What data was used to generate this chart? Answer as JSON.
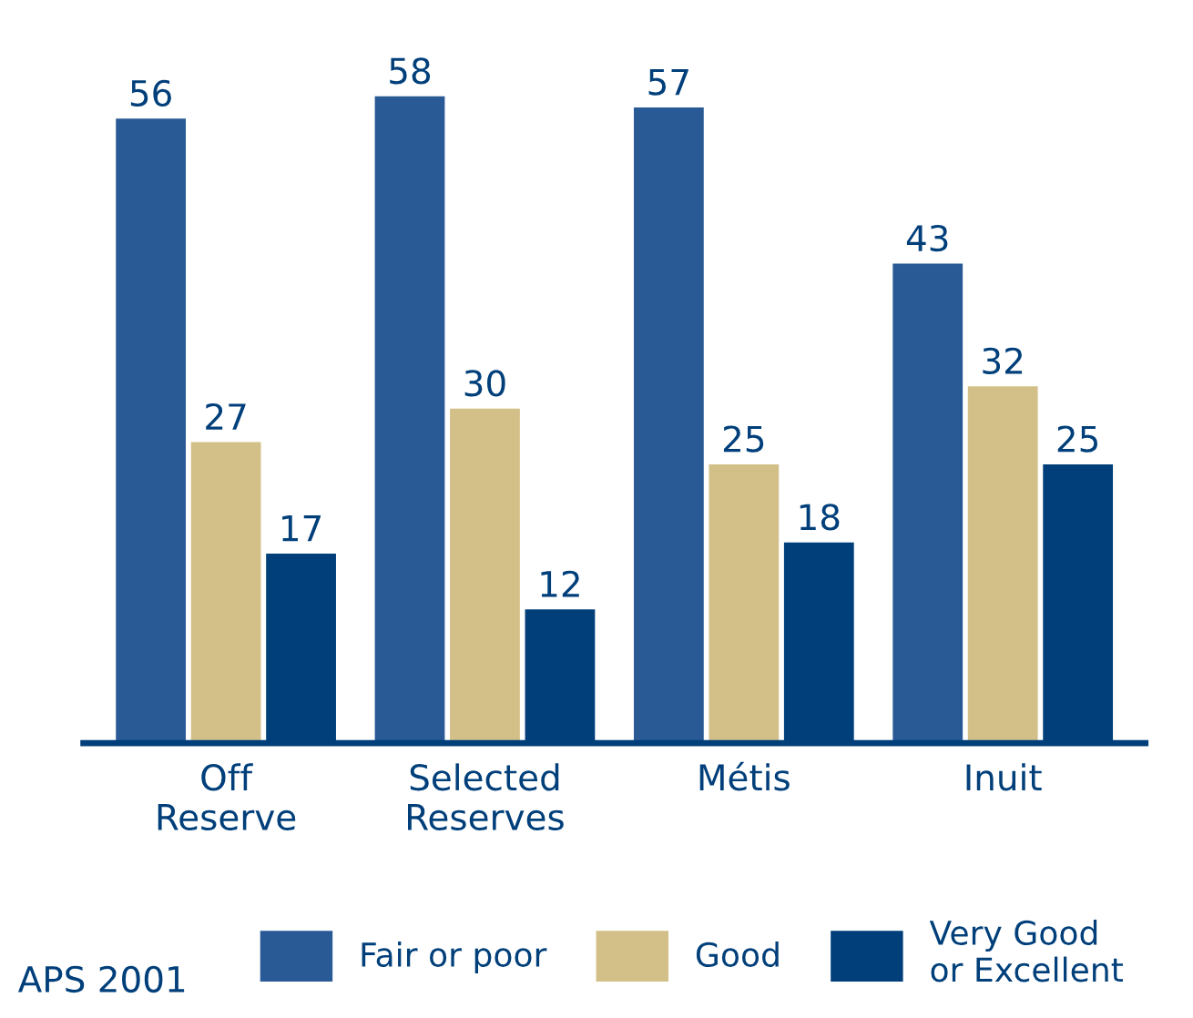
{
  "chart_data": {
    "type": "bar",
    "categories": [
      "Off\nReserve",
      "Selected\nReserves",
      "Métis",
      "Inuit"
    ],
    "series": [
      {
        "name": "Fair or poor",
        "color": "#2a5a95",
        "values": [
          56,
          58,
          57,
          43
        ]
      },
      {
        "name": "Good",
        "color": "#d3c089",
        "values": [
          27,
          30,
          25,
          32
        ]
      },
      {
        "name": "Very Good\nor Excellent",
        "color": "#003f7a",
        "values": [
          17,
          12,
          18,
          25
        ]
      }
    ],
    "tick_labels": "x",
    "data_labels": true,
    "grid": false,
    "legend": "bottom",
    "annotations": [
      "APS 2001"
    ]
  }
}
